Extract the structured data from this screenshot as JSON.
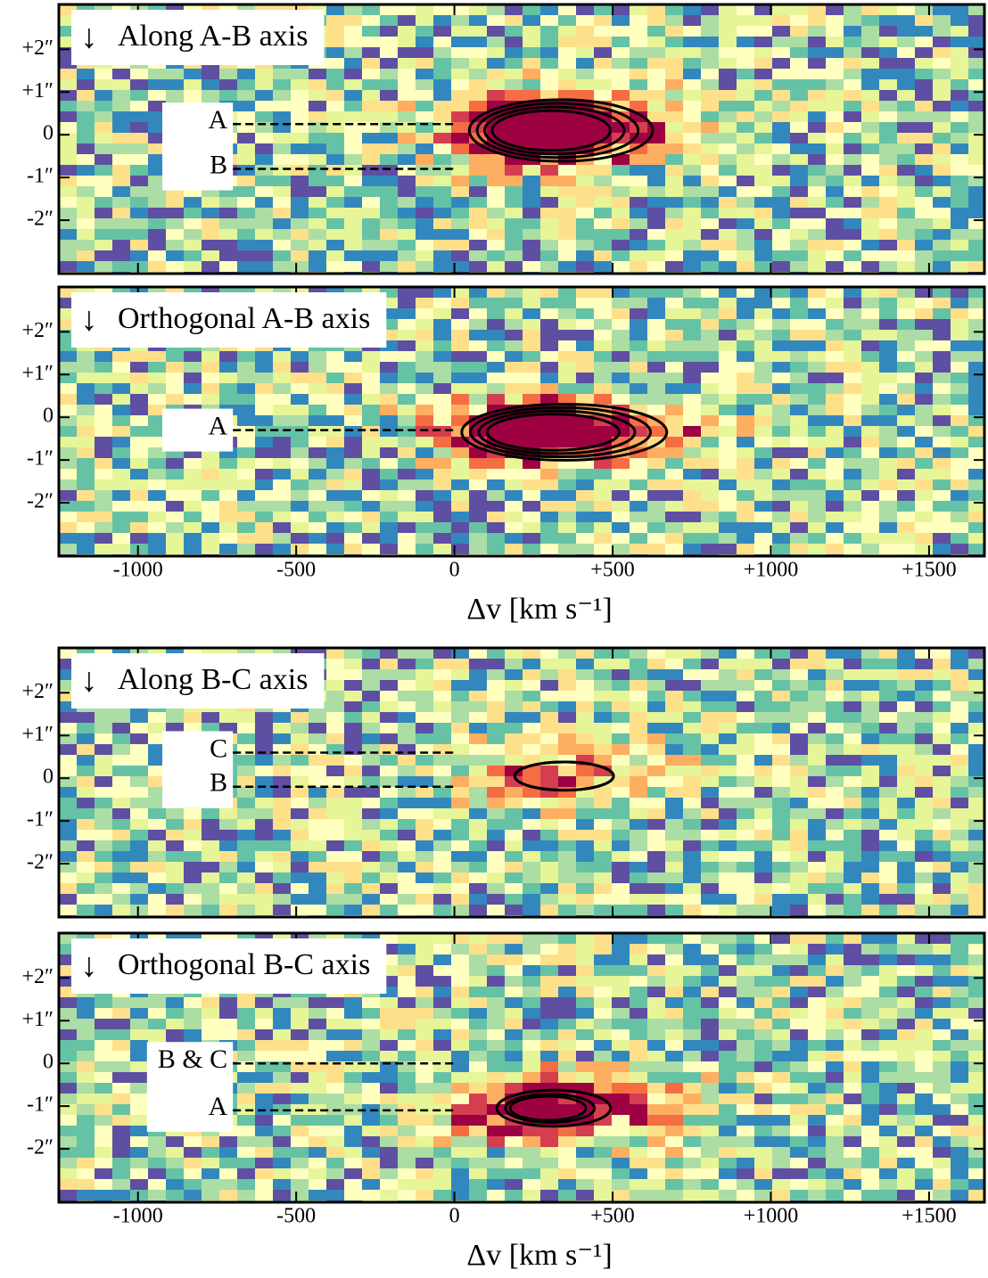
{
  "chart_data": [
    {
      "type": "heatmap",
      "title": "Along A-B axis",
      "markers": [
        {
          "label": "A",
          "y": 0.25
        },
        {
          "label": "B",
          "y": -0.8
        }
      ],
      "marker_xlim": [
        -700,
        0
      ],
      "xlim": [
        -1250,
        1675
      ],
      "ylim": [
        -3.25,
        3.05
      ],
      "xticks": [
        -1000,
        -500,
        0,
        {
          "value": 500,
          "label": "+500"
        },
        {
          "value": 1000,
          "label": "+1000"
        },
        {
          "value": 1500,
          "label": "+1500"
        }
      ],
      "yticks": [
        {
          "value": -2,
          "label": "-2″"
        },
        {
          "value": -1,
          "label": "-1″"
        },
        0,
        {
          "value": 1,
          "label": "+1″"
        },
        {
          "value": 2,
          "label": "+2″"
        }
      ]
    },
    {
      "type": "heatmap",
      "title": "Orthogonal A-B axis",
      "markers": [
        {
          "label": "A",
          "y": -0.3
        }
      ],
      "marker_xlim": [
        -700,
        0
      ],
      "xlim": [
        -1250,
        1675
      ],
      "ylim": [
        -3.25,
        3.05
      ],
      "xticks": [
        -1000,
        -500,
        0,
        {
          "value": 500,
          "label": "+500"
        },
        {
          "value": 1000,
          "label": "+1000"
        },
        {
          "value": 1500,
          "label": "+1500"
        }
      ],
      "yticks": [
        {
          "value": -2,
          "label": "-2″"
        },
        {
          "value": -1,
          "label": "-1″"
        },
        0,
        {
          "value": 1,
          "label": "+1″"
        },
        {
          "value": 2,
          "label": "+2″"
        }
      ],
      "xlabel": "Δv [km s⁻¹]"
    },
    {
      "type": "heatmap",
      "title": "Along B-C axis",
      "markers": [
        {
          "label": "C",
          "y": 0.6
        },
        {
          "label": "B",
          "y": -0.2
        }
      ],
      "marker_xlim": [
        -700,
        0
      ],
      "xlim": [
        -1250,
        1675
      ],
      "ylim": [
        -3.25,
        3.05
      ],
      "xticks": [
        -1000,
        -500,
        0,
        {
          "value": 500,
          "label": "+500"
        },
        {
          "value": 1000,
          "label": "+1000"
        },
        {
          "value": 1500,
          "label": "+1500"
        }
      ],
      "yticks": [
        {
          "value": -2,
          "label": "-2″"
        },
        {
          "value": -1,
          "label": "-1″"
        },
        0,
        {
          "value": 1,
          "label": "+1″"
        },
        {
          "value": 2,
          "label": "+2″"
        }
      ]
    },
    {
      "type": "heatmap",
      "title": "Orthogonal B-C axis",
      "markers": [
        {
          "label": "B & C",
          "y": 0
        },
        {
          "label": "A",
          "y": -1.1
        }
      ],
      "marker_xlim": [
        -700,
        0
      ],
      "xlim": [
        -1250,
        1675
      ],
      "ylim": [
        -3.25,
        3.05
      ],
      "xticks": [
        -1000,
        -500,
        0,
        {
          "value": 500,
          "label": "+500"
        },
        {
          "value": 1000,
          "label": "+1000"
        },
        {
          "value": 1500,
          "label": "+1500"
        }
      ],
      "yticks": [
        {
          "value": -2,
          "label": "-2″"
        },
        {
          "value": -1,
          "label": "-1″"
        },
        0,
        {
          "value": 1,
          "label": "+1″"
        },
        {
          "value": 2,
          "label": "+2″"
        }
      ],
      "xlabel": "Δv [km s⁻¹]"
    }
  ]
}
